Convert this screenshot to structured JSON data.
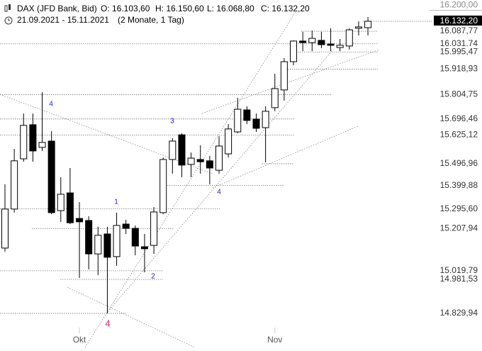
{
  "chart_data": {
    "type": "candlestick",
    "header": {
      "symbol": "DAX (JFD Bank, Bid)",
      "open": "O: 16.103,60",
      "high": "H: 16.150,60",
      "low": "L: 16.068,80",
      "close": "C: 16.132,20",
      "range": "21.09.2021 - 15.11.2021",
      "period": "(2 Monate, 1 Tag)"
    },
    "categories": [
      null,
      null,
      null,
      null,
      null,
      null,
      null,
      null,
      "Okt",
      null,
      null,
      null,
      null,
      null,
      null,
      null,
      null,
      null,
      null,
      null,
      null,
      null,
      null,
      null,
      null,
      null,
      null,
      null,
      null,
      "Nov",
      null,
      null,
      null,
      null,
      null,
      null,
      null,
      null,
      null,
      null
    ],
    "open": [
      15121,
      15295,
      15519,
      15671,
      15570,
      15598,
      15288,
      15367,
      15253,
      15244,
      15095,
      15184,
      15083,
      15228,
      15209,
      15127,
      15133,
      15279,
      15516,
      15626,
      15494,
      15516,
      15510,
      15468,
      15541,
      15639,
      15737,
      15696,
      15658,
      15747,
      15826,
      15952,
      16044,
      16037,
      16047,
      16031,
      16015,
      16022,
      16101,
      16103.6
    ],
    "high": [
      15405,
      15563,
      15721,
      15721,
      15816,
      15642,
      15437,
      15478,
      15326,
      15263,
      15216,
      15216,
      15279,
      15247,
      15222,
      15184,
      15304,
      15525,
      15611,
      15633,
      15547,
      15579,
      15532,
      15620,
      15674,
      15791,
      15753,
      15721,
      15753,
      15898,
      15968,
      16047,
      16085,
      16091,
      16085,
      16101,
      16053,
      16101,
      16132,
      16150.6
    ],
    "low": [
      15105,
      15279,
      15506,
      15506,
      15554,
      15272,
      15238,
      15228,
      14988,
      15026,
      15001,
      14830,
      15042,
      15184,
      15089,
      15013,
      15095,
      15272,
      15453,
      15437,
      15437,
      15453,
      15405,
      15453,
      15525,
      15633,
      15674,
      15639,
      15503,
      15731,
      15778,
      15936,
      15999,
      15999,
      16012,
      15999,
      15999,
      16006,
      16069,
      16068.8
    ],
    "close": [
      15295,
      15510,
      15668,
      15554,
      15592,
      15279,
      15361,
      15234,
      15238,
      15095,
      15178,
      15080,
      15222,
      15209,
      15130,
      15118,
      15282,
      15516,
      15598,
      15491,
      15522,
      15506,
      15478,
      15576,
      15652,
      15740,
      15690,
      15655,
      15731,
      15832,
      15952,
      16044,
      16037,
      16056,
      16028,
      16025,
      16025,
      16094,
      16107,
      16132.2
    ],
    "up_color": "#ffffff",
    "down_color": "#000000",
    "ylim": [
      14678,
      16227
    ],
    "yticks": [
      {
        "value": 16200,
        "label": "16.200,00"
      },
      {
        "value": 16132.2,
        "label": "16.132,20"
      },
      {
        "value": 16087.77,
        "label": "16.087,77"
      },
      {
        "value": 16031.74,
        "label": "16.031,74"
      },
      {
        "value": 15995.47,
        "label": "15.995,47"
      },
      {
        "value": 15918.93,
        "label": "15.918,93"
      },
      {
        "value": 15804.75,
        "label": "15.804,75"
      },
      {
        "value": 15696.46,
        "label": "15.696,46"
      },
      {
        "value": 15625.12,
        "label": "15.625,12"
      },
      {
        "value": 15496.96,
        "label": "15.496,96"
      },
      {
        "value": 15399.88,
        "label": "15.399,88"
      },
      {
        "value": 15295.6,
        "label": "15.295,60"
      },
      {
        "value": 15207.94,
        "label": "15.207,94"
      },
      {
        "value": 15019.79,
        "label": "15.019,79"
      },
      {
        "value": 14981.53,
        "label": "14.981,53"
      },
      {
        "value": 14829.94,
        "label": "14.829,94"
      }
    ],
    "annotations": [
      {
        "text": "4",
        "color": "#2222cc"
      },
      {
        "text": "3",
        "color": "#2222cc"
      },
      {
        "text": "1",
        "color": "#2222cc"
      },
      {
        "text": "2",
        "color": "#2222cc"
      },
      {
        "text": "4",
        "color": "#2222cc"
      },
      {
        "text": "4",
        "color": "#cc2277"
      }
    ]
  }
}
